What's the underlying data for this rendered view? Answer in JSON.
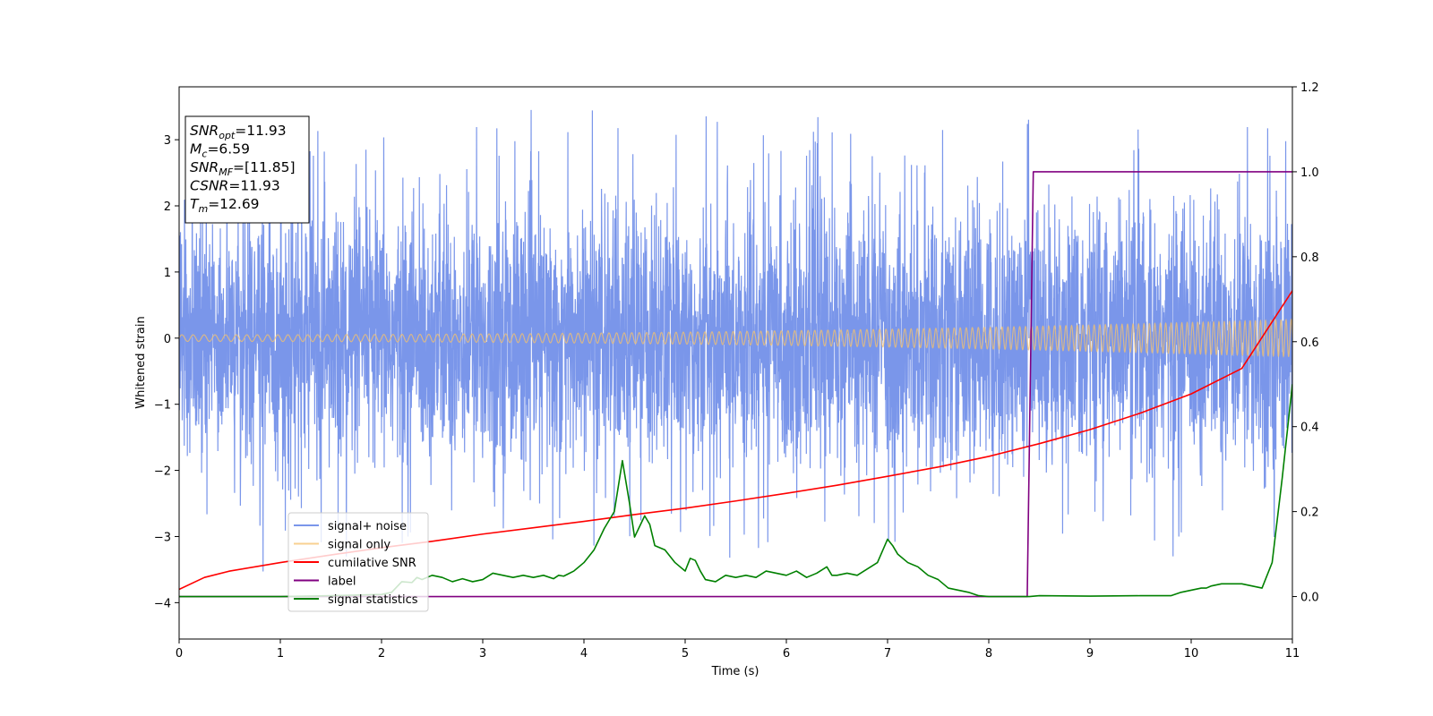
{
  "chart_data": {
    "type": "line",
    "xlabel": "Time (s)",
    "ylabel": "Whitened strain",
    "xlim": [
      0,
      11
    ],
    "ylim_left": [
      -4.55,
      3.8
    ],
    "ylim_right": [
      -0.1,
      1.2
    ],
    "x_ticks": [
      0,
      1,
      2,
      3,
      4,
      5,
      6,
      7,
      8,
      9,
      10,
      11
    ],
    "y_ticks_left": [
      -4,
      -3,
      -2,
      -1,
      0,
      1,
      2,
      3
    ],
    "y_ticks_right": [
      0.0,
      0.2,
      0.4,
      0.6,
      0.8,
      1.0,
      1.2
    ],
    "grid": false,
    "legend_position": "lower-left",
    "annotation": {
      "lines": [
        {
          "var": "SNR",
          "sub": "opt",
          "value": "=11.93"
        },
        {
          "var": "M",
          "sub": "c",
          "value": "=6.59"
        },
        {
          "var": "SNR",
          "sub": "MF",
          "value": "=[11.85]"
        },
        {
          "var": "CSNR",
          "sub": "",
          "value": "=11.93"
        },
        {
          "var": "T",
          "sub": "m",
          "value": "=12.69"
        }
      ]
    },
    "series": [
      {
        "name": "signal+ noise",
        "color": "#4169e1",
        "axis": "left",
        "kind": "noise",
        "description_values": {
          "x_range": [
            0,
            11
          ],
          "typical_range": [
            -2.5,
            2.6
          ],
          "extremes": [
            -4.15,
            3.45
          ]
        }
      },
      {
        "name": "signal only",
        "color": "#f5c16c",
        "axis": "left",
        "kind": "chirp",
        "amplitude_start": 0.05,
        "amplitude_end": 0.28,
        "frequency_start": 9,
        "frequency_end": 20
      },
      {
        "name": "cumilative SNR",
        "color": "#ff0000",
        "axis": "right",
        "x": [
          0,
          0.25,
          0.5,
          1,
          1.5,
          2,
          2.5,
          3,
          3.5,
          4,
          4.5,
          5,
          5.5,
          6,
          6.5,
          7,
          7.5,
          8,
          8.5,
          9,
          9.5,
          10,
          10.5,
          11
        ],
        "values": [
          0.017,
          0.045,
          0.06,
          0.08,
          0.098,
          0.115,
          0.13,
          0.147,
          0.162,
          0.177,
          0.193,
          0.208,
          0.225,
          0.243,
          0.262,
          0.283,
          0.305,
          0.33,
          0.36,
          0.393,
          0.432,
          0.477,
          0.537,
          0.72
        ]
      },
      {
        "name": "label",
        "color": "#800080",
        "axis": "right",
        "x": [
          0,
          8.38,
          8.44,
          11
        ],
        "values": [
          0.0,
          0.0,
          1.0,
          1.0
        ]
      },
      {
        "name": "signal statistics",
        "color": "#008000",
        "axis": "right",
        "x": [
          0,
          1.0,
          1.5,
          2.0,
          2.1,
          2.2,
          2.3,
          2.35,
          2.4,
          2.5,
          2.6,
          2.7,
          2.8,
          2.9,
          3.0,
          3.1,
          3.2,
          3.3,
          3.4,
          3.5,
          3.6,
          3.7,
          3.75,
          3.8,
          3.9,
          4.0,
          4.1,
          4.15,
          4.2,
          4.3,
          4.38,
          4.45,
          4.5,
          4.6,
          4.65,
          4.7,
          4.8,
          4.9,
          5.0,
          5.05,
          5.1,
          5.15,
          5.2,
          5.3,
          5.4,
          5.5,
          5.6,
          5.7,
          5.8,
          5.9,
          6.0,
          6.1,
          6.2,
          6.3,
          6.4,
          6.45,
          6.5,
          6.6,
          6.7,
          6.8,
          6.9,
          7.0,
          7.05,
          7.1,
          7.2,
          7.3,
          7.4,
          7.5,
          7.6,
          7.7,
          7.8,
          7.9,
          8.0,
          8.2,
          8.4,
          8.5,
          9.0,
          9.5,
          9.8,
          9.9,
          10.0,
          10.1,
          10.15,
          10.2,
          10.3,
          10.5,
          10.6,
          10.7,
          10.8,
          10.9,
          11.0
        ],
        "values": [
          0.0,
          0.0,
          0.002,
          0.005,
          0.01,
          0.035,
          0.033,
          0.045,
          0.04,
          0.05,
          0.045,
          0.035,
          0.042,
          0.035,
          0.04,
          0.055,
          0.05,
          0.045,
          0.05,
          0.045,
          0.05,
          0.042,
          0.05,
          0.048,
          0.06,
          0.08,
          0.11,
          0.135,
          0.16,
          0.2,
          0.32,
          0.22,
          0.14,
          0.19,
          0.17,
          0.12,
          0.11,
          0.08,
          0.06,
          0.09,
          0.085,
          0.06,
          0.04,
          0.035,
          0.05,
          0.045,
          0.05,
          0.045,
          0.06,
          0.055,
          0.05,
          0.06,
          0.045,
          0.055,
          0.07,
          0.05,
          0.05,
          0.055,
          0.05,
          0.065,
          0.08,
          0.135,
          0.12,
          0.1,
          0.08,
          0.07,
          0.05,
          0.04,
          0.02,
          0.015,
          0.01,
          0.002,
          0.0,
          0.0,
          0.0,
          0.002,
          0.001,
          0.002,
          0.002,
          0.01,
          0.015,
          0.02,
          0.02,
          0.025,
          0.03,
          0.03,
          0.025,
          0.02,
          0.08,
          0.28,
          0.5
        ]
      }
    ]
  }
}
